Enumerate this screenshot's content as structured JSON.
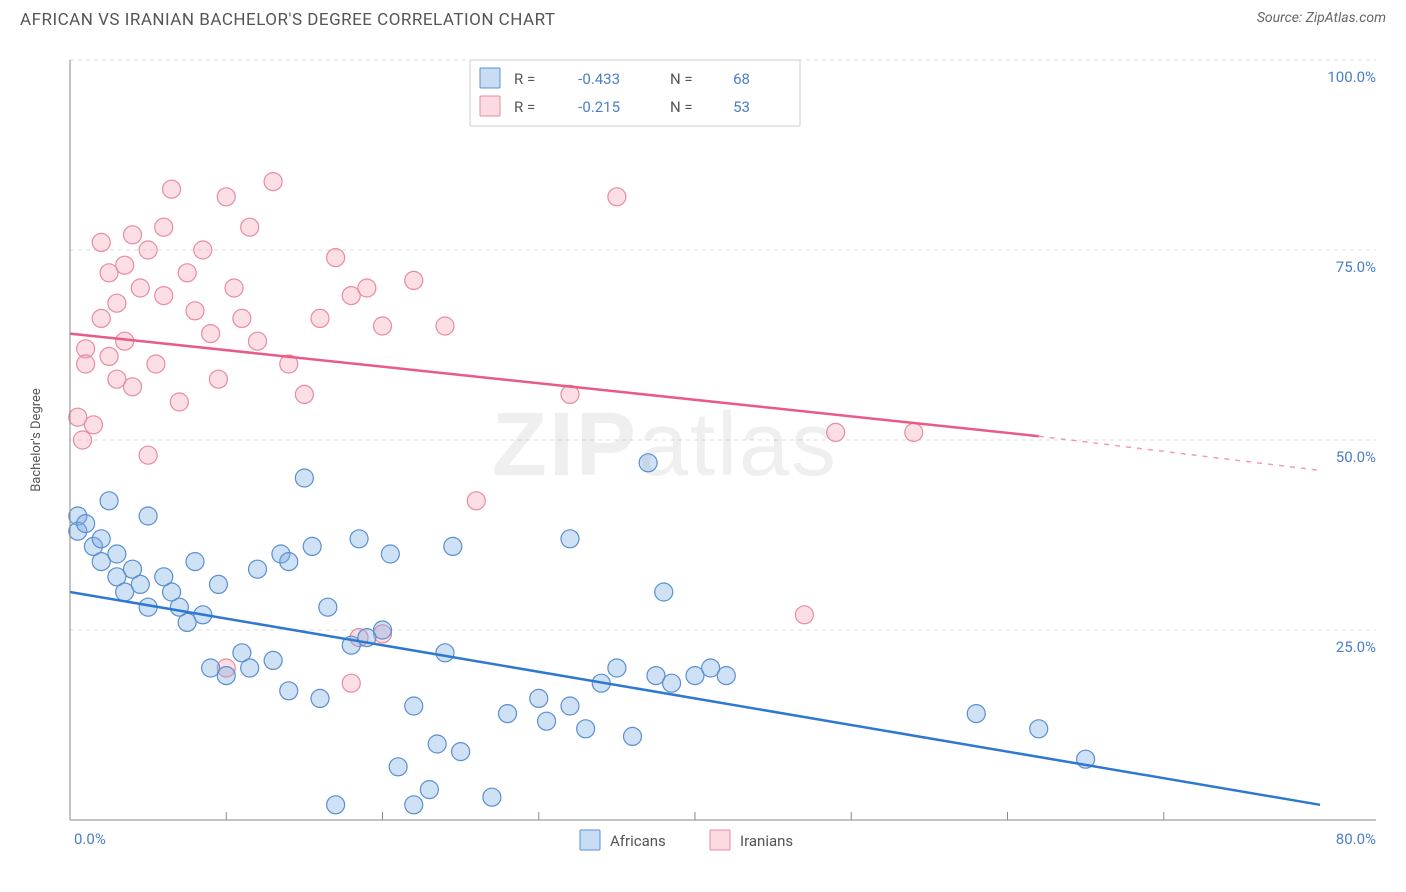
{
  "title": "AFRICAN VS IRANIAN BACHELOR'S DEGREE CORRELATION CHART",
  "source_prefix": "Source: ",
  "source_name": "ZipAtlas.com",
  "ylabel": "Bachelor's Degree",
  "watermark_a": "ZIP",
  "watermark_b": "atlas",
  "chart": {
    "type": "scatter",
    "xlim": [
      0,
      80
    ],
    "ylim": [
      0,
      100
    ],
    "x_ticks_major": [
      0,
      80
    ],
    "x_ticks_minor": [
      10,
      20,
      30,
      40,
      50,
      60,
      70
    ],
    "y_ticks": [
      25,
      50,
      75,
      100
    ],
    "x_tick_labels": {
      "0": "0.0%",
      "80": "80.0%"
    },
    "y_tick_labels": {
      "25": "25.0%",
      "50": "50.0%",
      "75": "75.0%",
      "100": "100.0%"
    },
    "background_color": "#ffffff",
    "grid_color": "#dddddd",
    "series_a": {
      "label": "Africans",
      "color_fill": "rgba(118,169,226,0.35)",
      "color_stroke": "#5a8fcf",
      "trend_color": "#2f78d1",
      "R": "-0.433",
      "N": "68",
      "marker_radius": 9,
      "trend": {
        "x1": 0,
        "y1": 30,
        "x2": 80,
        "y2": 2
      },
      "points": [
        [
          0.5,
          40
        ],
        [
          0.5,
          38
        ],
        [
          1,
          39
        ],
        [
          1.5,
          36
        ],
        [
          2,
          34
        ],
        [
          2,
          37
        ],
        [
          2.5,
          42
        ],
        [
          3,
          32
        ],
        [
          3,
          35
        ],
        [
          3.5,
          30
        ],
        [
          4,
          33
        ],
        [
          4.5,
          31
        ],
        [
          5,
          40
        ],
        [
          5,
          28
        ],
        [
          6,
          32
        ],
        [
          6.5,
          30
        ],
        [
          7,
          28
        ],
        [
          7.5,
          26
        ],
        [
          8,
          34
        ],
        [
          8.5,
          27
        ],
        [
          9,
          20
        ],
        [
          9.5,
          31
        ],
        [
          10,
          19
        ],
        [
          11,
          22
        ],
        [
          11.5,
          20
        ],
        [
          12,
          33
        ],
        [
          13,
          21
        ],
        [
          13.5,
          35
        ],
        [
          14,
          17
        ],
        [
          14,
          34
        ],
        [
          15,
          45
        ],
        [
          15.5,
          36
        ],
        [
          16,
          16
        ],
        [
          16.5,
          28
        ],
        [
          17,
          2
        ],
        [
          18,
          23
        ],
        [
          18.5,
          37
        ],
        [
          19,
          24
        ],
        [
          20,
          25
        ],
        [
          20.5,
          35
        ],
        [
          21,
          7
        ],
        [
          22,
          15
        ],
        [
          22,
          2
        ],
        [
          23,
          4
        ],
        [
          23.5,
          10
        ],
        [
          24,
          22
        ],
        [
          24.5,
          36
        ],
        [
          25,
          9
        ],
        [
          27,
          3
        ],
        [
          28,
          14
        ],
        [
          30,
          16
        ],
        [
          30.5,
          13
        ],
        [
          32,
          15
        ],
        [
          32,
          37
        ],
        [
          33,
          12
        ],
        [
          34,
          18
        ],
        [
          35,
          20
        ],
        [
          36,
          11
        ],
        [
          37,
          47
        ],
        [
          37.5,
          19
        ],
        [
          38,
          30
        ],
        [
          38.5,
          18
        ],
        [
          40,
          19
        ],
        [
          41,
          20
        ],
        [
          42,
          19
        ],
        [
          58,
          14
        ],
        [
          62,
          12
        ],
        [
          65,
          8
        ]
      ]
    },
    "series_b": {
      "label": "Iranians",
      "color_fill": "rgba(243,164,181,0.35)",
      "color_stroke": "#e88ba0",
      "trend_color": "#e85a87",
      "R": "-0.215",
      "N": "53",
      "marker_radius": 9,
      "trend": {
        "x1": 0,
        "y1": 64,
        "x2": 62,
        "y2": 50.5,
        "ext_x2": 80,
        "ext_y2": 46
      },
      "points": [
        [
          0.5,
          53
        ],
        [
          0.8,
          50
        ],
        [
          1,
          62
        ],
        [
          1,
          60
        ],
        [
          1.5,
          52
        ],
        [
          2,
          76
        ],
        [
          2,
          66
        ],
        [
          2.5,
          61
        ],
        [
          2.5,
          72
        ],
        [
          3,
          58
        ],
        [
          3,
          68
        ],
        [
          3.5,
          63
        ],
        [
          3.5,
          73
        ],
        [
          4,
          57
        ],
        [
          4,
          77
        ],
        [
          4.5,
          70
        ],
        [
          5,
          48
        ],
        [
          5,
          75
        ],
        [
          5.5,
          60
        ],
        [
          6,
          78
        ],
        [
          6,
          69
        ],
        [
          6.5,
          83
        ],
        [
          7,
          55
        ],
        [
          7.5,
          72
        ],
        [
          8,
          67
        ],
        [
          8.5,
          75
        ],
        [
          9,
          64
        ],
        [
          9.5,
          58
        ],
        [
          10,
          82
        ],
        [
          10.5,
          70
        ],
        [
          11,
          66
        ],
        [
          11.5,
          78
        ],
        [
          12,
          63
        ],
        [
          13,
          84
        ],
        [
          14,
          60
        ],
        [
          15,
          56
        ],
        [
          16,
          66
        ],
        [
          17,
          74
        ],
        [
          18,
          69
        ],
        [
          19,
          70
        ],
        [
          20,
          65
        ],
        [
          22,
          71
        ],
        [
          24,
          65
        ],
        [
          26,
          42
        ],
        [
          10,
          20
        ],
        [
          18,
          18
        ],
        [
          18.5,
          24
        ],
        [
          20,
          24.5
        ],
        [
          32,
          56
        ],
        [
          35,
          82
        ],
        [
          49,
          51
        ],
        [
          54,
          51
        ],
        [
          47,
          27
        ]
      ]
    }
  },
  "legend_top": {
    "r_label": "R =",
    "n_label": "N ="
  },
  "legend_bottom": {
    "series_a": "Africans",
    "series_b": "Iranians"
  }
}
